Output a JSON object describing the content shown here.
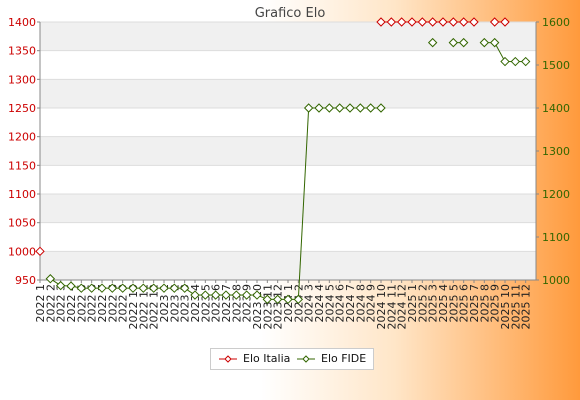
{
  "chart_data": {
    "type": "line",
    "title": "Grafico Elo",
    "categories": [
      "2022 1",
      "2022 2",
      "2022 3",
      "2022 4",
      "2022 5",
      "2022 6",
      "2022 7",
      "2022 8",
      "2022 9",
      "2022 10",
      "2022 11",
      "2022 12",
      "2023 1",
      "2023 2",
      "2023 3",
      "2023 4",
      "2023 5",
      "2023 6",
      "2023 7",
      "2023 8",
      "2023 9",
      "2023 10",
      "2023 11",
      "2023 12",
      "2024 1",
      "2024 2",
      "2024 3",
      "2024 4",
      "2024 5",
      "2024 6",
      "2024 7",
      "2024 8",
      "2024 9",
      "2024 10",
      "2024 11",
      "2024 12",
      "2025 1",
      "2025 2",
      "2025 3",
      "2025 4",
      "2025 5",
      "2025 6",
      "2025 7",
      "2025 8",
      "2025 9",
      "2025 10",
      "2025 11",
      "2025 12"
    ],
    "y_left": {
      "min": 950,
      "max": 1400,
      "ticks": [
        950,
        1000,
        1050,
        1100,
        1150,
        1200,
        1250,
        1300,
        1350,
        1400
      ],
      "color": "#cc0000"
    },
    "y_right": {
      "min": 1000,
      "max": 1600,
      "ticks": [
        1000,
        1100,
        1200,
        1300,
        1400,
        1500,
        1600
      ],
      "color": "#336600"
    },
    "grid": true,
    "legend_position": "bottom-center",
    "series": [
      {
        "name": "Elo Italia",
        "axis": "left",
        "color": "#cc0000",
        "values": [
          1000,
          null,
          null,
          null,
          null,
          null,
          null,
          null,
          null,
          null,
          null,
          null,
          null,
          null,
          null,
          null,
          null,
          null,
          null,
          null,
          null,
          null,
          null,
          null,
          null,
          null,
          null,
          null,
          null,
          null,
          null,
          null,
          null,
          1400,
          1400,
          1400,
          1400,
          1400,
          1400,
          1400,
          1400,
          1400,
          1400,
          null,
          1400,
          1400,
          null,
          null
        ]
      },
      {
        "name": "Elo FIDE",
        "axis": "right",
        "color": "#336600",
        "values": [
          null,
          1003,
          987,
          986,
          981,
          981,
          981,
          981,
          981,
          981,
          981,
          981,
          981,
          981,
          981,
          965,
          965,
          965,
          965,
          965,
          965,
          965,
          955,
          955,
          955,
          955,
          1400,
          1400,
          1400,
          1400,
          1400,
          1400,
          1400,
          1400,
          null,
          null,
          null,
          null,
          1552,
          null,
          1552,
          1552,
          null,
          1552,
          1552,
          1508,
          1508,
          1508
        ]
      }
    ]
  }
}
